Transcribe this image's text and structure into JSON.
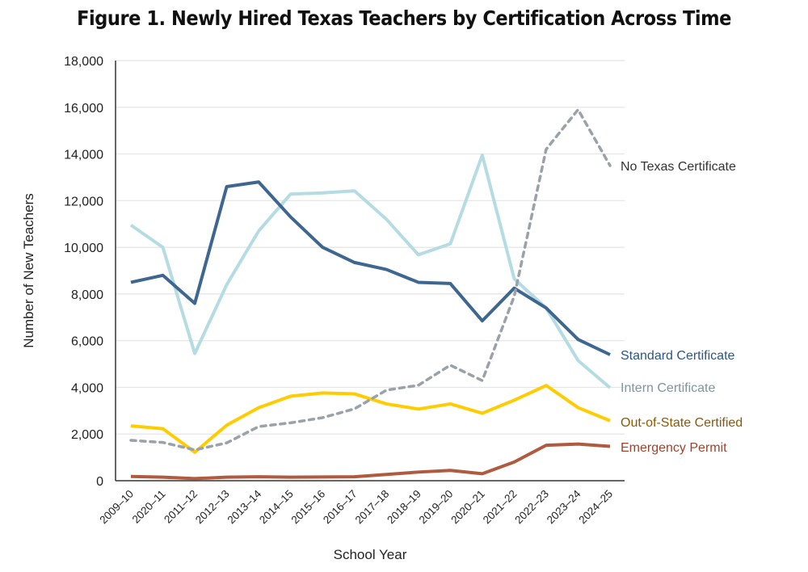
{
  "chart_data": {
    "type": "line",
    "title": "Figure 1. Newly Hired Texas Teachers by Certification Across Time",
    "xlabel": "School Year",
    "ylabel": "Number of New Teachers",
    "ylim": [
      0,
      18000
    ],
    "yticks": [
      "0",
      "2,000",
      "4,000",
      "6,000",
      "8,000",
      "10,000",
      "12,000",
      "14,000",
      "16,000",
      "18,000"
    ],
    "grid": true,
    "legend": "inline-right",
    "categories": [
      "2009–10",
      "2020–11",
      "2011–12",
      "2012–13",
      "2013–14",
      "2014–15",
      "2015–16",
      "2016–17",
      "2017–18",
      "2018–19",
      "2019–20",
      "2020–21",
      "2021–22",
      "2022–23",
      "2023–24",
      "2024–25"
    ],
    "series": [
      {
        "name": "No Texas Certificate",
        "color": "#9aa1a9",
        "label_color": "#333333",
        "dashed": true,
        "values": [
          1730,
          1640,
          1320,
          1620,
          2320,
          2480,
          2700,
          3080,
          3880,
          4090,
          4950,
          4290,
          7900,
          14200,
          15900,
          13500
        ]
      },
      {
        "name": "Standard Certificate",
        "color": "#3d6690",
        "label_color": "#2d5680",
        "dashed": false,
        "values": [
          8500,
          8800,
          7600,
          12600,
          12800,
          11300,
          10000,
          9350,
          9050,
          8500,
          8450,
          6850,
          8250,
          7400,
          6050,
          5400
        ]
      },
      {
        "name": "Intern Certificate",
        "color": "#b5dbe3",
        "label_color": "#7f959c",
        "dashed": false,
        "values": [
          10950,
          10000,
          5450,
          8400,
          10700,
          12280,
          12330,
          12420,
          11200,
          9680,
          10150,
          13950,
          8650,
          7400,
          5150,
          3980
        ]
      },
      {
        "name": "Out-of-State Certified",
        "color": "#ffcc00",
        "label_color": "#8a5a00",
        "dashed": false,
        "values": [
          2350,
          2230,
          1220,
          2380,
          3130,
          3620,
          3760,
          3720,
          3290,
          3070,
          3290,
          2890,
          3450,
          4080,
          3130,
          2570
        ]
      },
      {
        "name": "Emergency Permit",
        "color": "#b05a40",
        "label_color": "#a1412a",
        "dashed": false,
        "values": [
          180,
          150,
          90,
          150,
          170,
          150,
          160,
          170,
          270,
          370,
          440,
          300,
          800,
          1520,
          1570,
          1470
        ]
      }
    ]
  }
}
